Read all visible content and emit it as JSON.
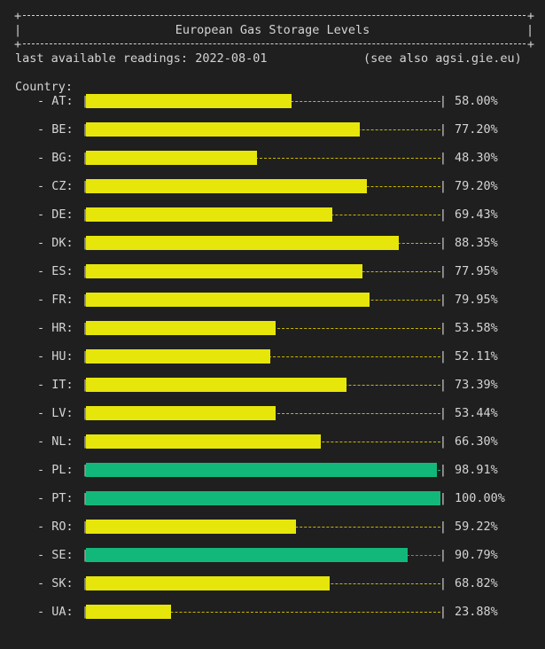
{
  "header": {
    "title": "European Gas Storage Levels",
    "readings_label": "last available readings: 2022-08-01",
    "see_also": "(see also agsi.gie.eu)",
    "country_heading": "Country:"
  },
  "colors": {
    "normal": "#e6e60a",
    "high": "#12b87a",
    "track_normal": "#c9b800",
    "track_high": "#12b87a"
  },
  "chart_data": {
    "type": "bar",
    "categories": [
      "AT",
      "BE",
      "BG",
      "CZ",
      "DE",
      "DK",
      "ES",
      "FR",
      "HR",
      "HU",
      "IT",
      "LV",
      "NL",
      "PL",
      "PT",
      "RO",
      "SE",
      "SK",
      "UA"
    ],
    "labels": [
      "- AT: ",
      "- BE: ",
      "- BG: ",
      "- CZ: ",
      "- DE: ",
      "- DK: ",
      "- ES: ",
      "- FR: ",
      "- HR: ",
      "- HU: ",
      "- IT: ",
      "- LV: ",
      "- NL: ",
      "- PL: ",
      "- PT: ",
      "- RO: ",
      "- SE: ",
      "- SK: ",
      "- UA: "
    ],
    "values": [
      58.0,
      77.2,
      48.3,
      79.2,
      69.43,
      88.35,
      77.95,
      79.95,
      53.58,
      52.11,
      73.39,
      53.44,
      66.3,
      98.91,
      100.0,
      59.22,
      90.79,
      68.82,
      23.88
    ],
    "value_labels": [
      "58.00%",
      "77.20%",
      "48.30%",
      "79.20%",
      "69.43%",
      "88.35%",
      "77.95%",
      "79.95%",
      "53.58%",
      "52.11%",
      "73.39%",
      "53.44%",
      "66.30%",
      "98.91%",
      "100.00%",
      "59.22%",
      "90.79%",
      "68.82%",
      "23.88%"
    ],
    "ylim": [
      0,
      100
    ]
  }
}
